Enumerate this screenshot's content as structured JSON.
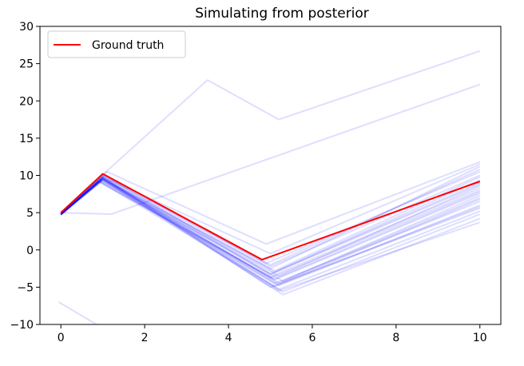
{
  "chart_data": {
    "type": "line",
    "title": "Simulating from posterior",
    "xlabel": "",
    "ylabel": "",
    "xlim": [
      -0.5,
      10.5
    ],
    "ylim": [
      -10,
      30
    ],
    "x_ticks": [
      0,
      2,
      4,
      6,
      8,
      10
    ],
    "y_ticks": [
      -10,
      -5,
      0,
      5,
      10,
      15,
      20,
      25,
      30
    ],
    "grid": false,
    "legend_position": "top-left",
    "legend": [
      {
        "label": "Ground truth",
        "color": "#ff0000"
      }
    ],
    "ground_truth": {
      "name": "Ground truth",
      "color": "#ff0000",
      "x": [
        0,
        1,
        4.8,
        10
      ],
      "y": [
        5,
        10.2,
        -1.3,
        9.2
      ]
    },
    "posterior_color": "#0000ff",
    "posterior_samples": [
      {
        "x": [
          0,
          3.5,
          5.2,
          10
        ],
        "y": [
          5,
          22.8,
          17.5,
          26.7
        ]
      },
      {
        "x": [
          0,
          1.2,
          10
        ],
        "y": [
          5,
          4.8,
          22.2
        ]
      },
      {
        "x": [
          -0.05,
          1,
          10
        ],
        "y": [
          -7,
          -10.5,
          -10.5
        ]
      },
      {
        "x": [
          0,
          1.1,
          4.9,
          10
        ],
        "y": [
          5,
          10.5,
          0.8,
          11.8
        ]
      },
      {
        "x": [
          0,
          1.0,
          5.0,
          10
        ],
        "y": [
          4.9,
          10.0,
          -2.0,
          10.8
        ]
      },
      {
        "x": [
          0,
          0.95,
          5.1,
          10
        ],
        "y": [
          4.8,
          9.6,
          -2.8,
          9.8
        ]
      },
      {
        "x": [
          0,
          1.05,
          5.0,
          10
        ],
        "y": [
          4.8,
          9.9,
          -3.2,
          9.0
        ]
      },
      {
        "x": [
          0,
          0.95,
          5.2,
          10
        ],
        "y": [
          4.7,
          9.4,
          -3.5,
          8.6
        ]
      },
      {
        "x": [
          0,
          1.0,
          5.0,
          10
        ],
        "y": [
          4.9,
          9.7,
          -3.8,
          8.0
        ]
      },
      {
        "x": [
          0,
          0.9,
          5.1,
          10
        ],
        "y": [
          4.7,
          9.2,
          -4.0,
          7.6
        ]
      },
      {
        "x": [
          0,
          1.0,
          5.3,
          10
        ],
        "y": [
          4.8,
          9.5,
          -4.2,
          7.0
        ]
      },
      {
        "x": [
          0,
          1.0,
          5.1,
          10
        ],
        "y": [
          4.8,
          9.6,
          -4.5,
          6.5
        ]
      },
      {
        "x": [
          0,
          0.95,
          5.2,
          10
        ],
        "y": [
          4.7,
          9.3,
          -4.8,
          6.0
        ]
      },
      {
        "x": [
          0,
          1.0,
          5.0,
          10
        ],
        "y": [
          4.9,
          9.8,
          -5.0,
          5.6
        ]
      },
      {
        "x": [
          0,
          1.0,
          5.2,
          10
        ],
        "y": [
          4.8,
          9.5,
          -5.3,
          5.2
        ]
      },
      {
        "x": [
          0,
          0.95,
          5.3,
          10
        ],
        "y": [
          4.7,
          9.1,
          -5.6,
          4.8
        ]
      },
      {
        "x": [
          0,
          1.0,
          5.3,
          10
        ],
        "y": [
          4.8,
          9.4,
          -6.0,
          4.2
        ]
      },
      {
        "x": [
          0,
          1.0,
          5.0,
          10
        ],
        "y": [
          4.8,
          9.7,
          -2.5,
          11.2
        ]
      },
      {
        "x": [
          0,
          1.05,
          4.9,
          10
        ],
        "y": [
          4.9,
          10.1,
          -1.8,
          10.5
        ]
      },
      {
        "x": [
          0,
          1.0,
          5.1,
          10
        ],
        "y": [
          4.8,
          9.6,
          -3.0,
          9.4
        ]
      },
      {
        "x": [
          0,
          0.9,
          5.0,
          10
        ],
        "y": [
          4.7,
          9.2,
          -3.6,
          8.3
        ]
      },
      {
        "x": [
          0,
          1.0,
          5.2,
          10
        ],
        "y": [
          4.8,
          9.5,
          -4.4,
          7.3
        ]
      },
      {
        "x": [
          0,
          1.0,
          5.1,
          10
        ],
        "y": [
          4.8,
          9.6,
          -4.9,
          6.8
        ]
      },
      {
        "x": [
          0,
          1.0,
          5.2,
          10
        ],
        "y": [
          4.8,
          9.4,
          -5.5,
          3.7
        ]
      },
      {
        "x": [
          0,
          1.0,
          5.0,
          10
        ],
        "y": [
          4.8,
          9.8,
          -0.5,
          11.5
        ]
      },
      {
        "x": [
          0,
          1.0,
          5.0,
          10
        ],
        "y": [
          4.9,
          9.9,
          -2.2,
          10.0
        ]
      },
      {
        "x": [
          0,
          0.95,
          5.1,
          10
        ],
        "y": [
          4.8,
          9.3,
          -3.9,
          7.8
        ]
      },
      {
        "x": [
          0,
          1.0,
          5.2,
          10
        ],
        "y": [
          4.8,
          9.5,
          -4.6,
          5.8
        ]
      },
      {
        "x": [
          0,
          1.0,
          5.0,
          10
        ],
        "y": [
          4.8,
          9.7,
          -3.3,
          8.8
        ]
      }
    ]
  }
}
